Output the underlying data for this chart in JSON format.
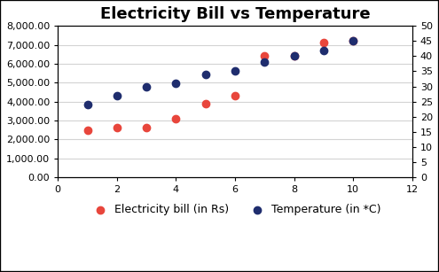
{
  "title": "Electricity Bill vs Temperature",
  "x_values_bill": [
    1,
    2,
    3,
    4,
    5,
    6,
    7,
    8,
    9,
    10
  ],
  "y_values_bill": [
    2500,
    2600,
    2600,
    3100,
    3900,
    4300,
    6400,
    6400,
    7100,
    7200
  ],
  "x_values_temp": [
    1,
    2,
    3,
    4,
    5,
    6,
    7,
    8,
    9,
    10
  ],
  "y_values_temp": [
    24,
    27,
    30,
    31,
    34,
    35,
    38,
    40,
    42,
    45
  ],
  "color_bill": "#E8463C",
  "color_temp": "#1F2D6E",
  "xlim": [
    0,
    12
  ],
  "ylim_left": [
    0,
    8000
  ],
  "ylim_right": [
    0,
    50
  ],
  "yticks_left": [
    0,
    1000,
    2000,
    3000,
    4000,
    5000,
    6000,
    7000,
    8000
  ],
  "yticks_right": [
    0,
    5,
    10,
    15,
    20,
    25,
    30,
    35,
    40,
    45,
    50
  ],
  "xticks": [
    0,
    2,
    4,
    6,
    8,
    10,
    12
  ],
  "legend_bill": "Electricity bill (in Rs)",
  "legend_temp": "Temperature (in *C)",
  "title_fontsize": 13,
  "legend_fontsize": 9,
  "tick_fontsize": 8,
  "marker_size": 6,
  "bg_color": "#FFFFFF",
  "grid_color": "#D3D3D3",
  "border_color": "#000000"
}
